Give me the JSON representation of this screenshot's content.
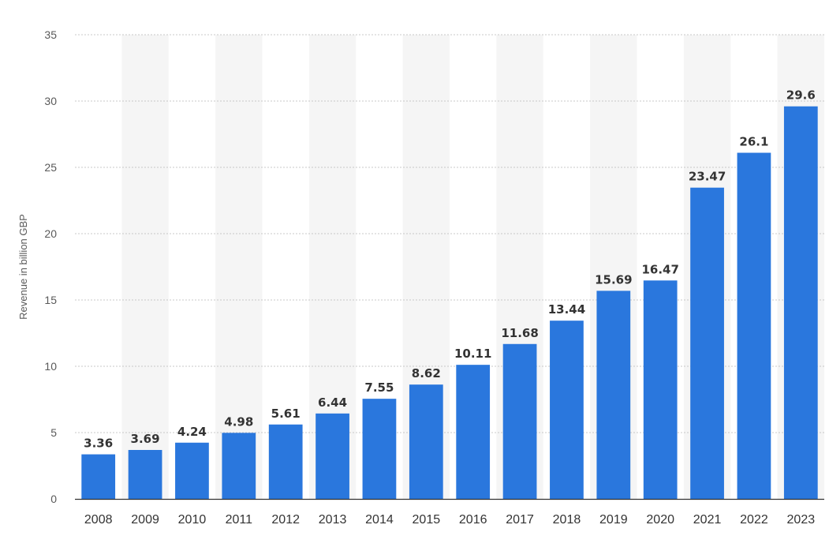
{
  "chart_data": {
    "type": "bar",
    "categories": [
      "2008",
      "2009",
      "2010",
      "2011",
      "2012",
      "2013",
      "2014",
      "2015",
      "2016",
      "2017",
      "2018",
      "2019",
      "2020",
      "2021",
      "2022",
      "2023"
    ],
    "series": [
      {
        "values": [
          3.36,
          3.69,
          4.24,
          4.98,
          5.61,
          6.44,
          7.55,
          8.62,
          10.11,
          11.68,
          13.44,
          15.69,
          16.47,
          23.47,
          26.1,
          29.6
        ]
      }
    ],
    "value_labels": [
      "3.36",
      "3.69",
      "4.24",
      "4.98",
      "5.61",
      "6.44",
      "7.55",
      "8.62",
      "10.11",
      "11.68",
      "13.44",
      "15.69",
      "16.47",
      "23.47",
      "26.1",
      "29.6"
    ],
    "ylabel": "Revenue in billion GBP",
    "ylim": [
      0,
      35
    ],
    "yticks": [
      0,
      5,
      10,
      15,
      20,
      25,
      30,
      35
    ],
    "ytick_labels": [
      "0",
      "5",
      "10",
      "15",
      "20",
      "25",
      "30",
      "35"
    ],
    "grid": true,
    "alternating_column_bands": true,
    "colors": {
      "bar": "#2a77dd",
      "band": "#f5f5f5",
      "grid": "#c8c8c8",
      "axis": "#333333"
    }
  }
}
